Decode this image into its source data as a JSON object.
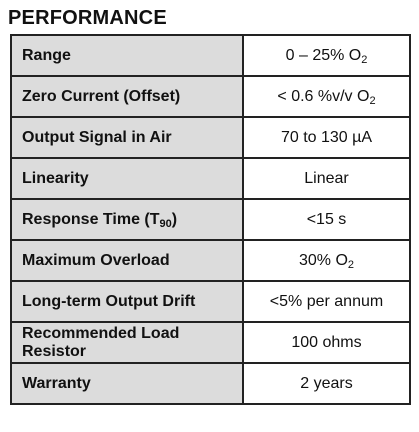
{
  "section": {
    "title": "PERFORMANCE"
  },
  "rows": [
    {
      "parameter": "Range",
      "value": "0 – 25% O",
      "value_sub": "2"
    },
    {
      "parameter": "Zero Current (Offset)",
      "value": "< 0.6 %v/v O",
      "value_sub": "2"
    },
    {
      "parameter": "Output Signal in Air",
      "value": "70 to 130 µA"
    },
    {
      "parameter": "Linearity",
      "value": "Linear"
    },
    {
      "parameter": "Response Time (T",
      "parameter_sub": "90",
      "parameter_suffix": ")",
      "value": "<15 s"
    },
    {
      "parameter": "Maximum Overload",
      "value": "30% O",
      "value_sub": "2"
    },
    {
      "parameter": "Long-term Output Drift",
      "value": "<5% per annum"
    },
    {
      "parameter": "Recommended Load Resistor",
      "value": "100 ohms"
    },
    {
      "parameter": "Warranty",
      "value": "2 years"
    }
  ]
}
